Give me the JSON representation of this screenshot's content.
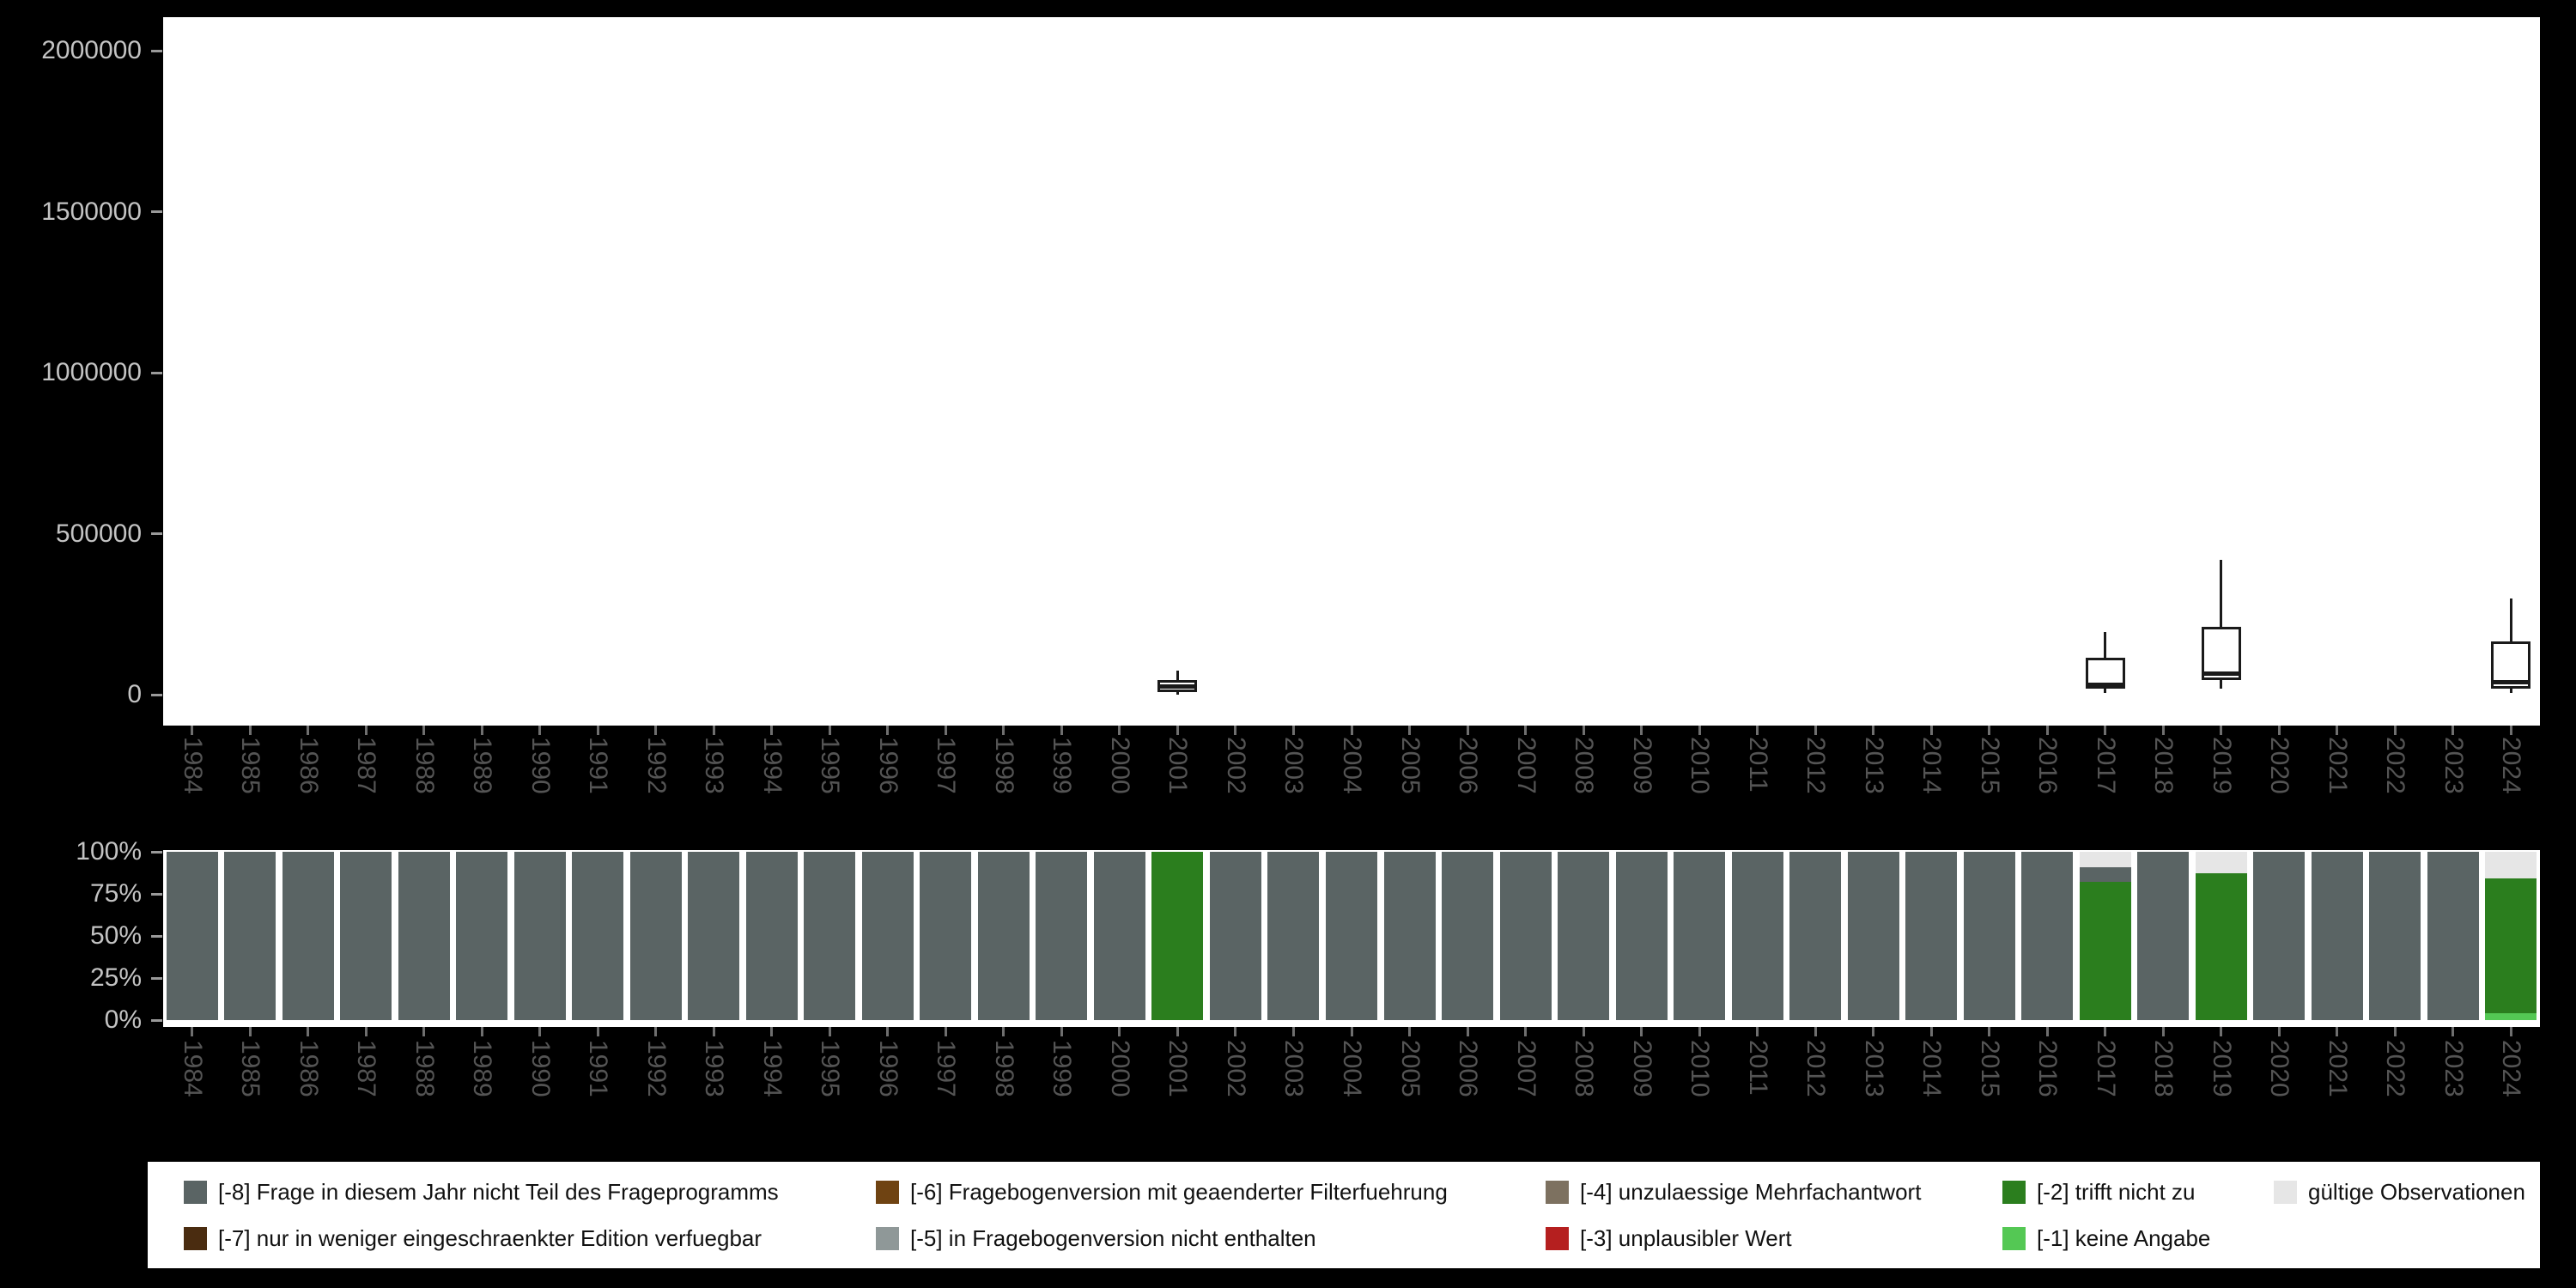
{
  "legend": {
    "items": [
      {
        "key": "-8",
        "label": "[-8] Frage in diesem Jahr nicht Teil des Frageprogramms",
        "color": "#5a6464"
      },
      {
        "key": "-7",
        "label": "[-7] nur in weniger eingeschraenkter Edition verfuegbar",
        "color": "#4a2c10"
      },
      {
        "key": "-6",
        "label": "[-6] Fragebogenversion mit geaenderter Filterfuehrung",
        "color": "#6f4312"
      },
      {
        "key": "-5",
        "label": "[-5] in Fragebogenversion nicht enthalten",
        "color": "#8f9898"
      },
      {
        "key": "-4",
        "label": "[-4] unzulaessige Mehrfachantwort",
        "color": "#7d7160"
      },
      {
        "key": "-3",
        "label": "[-3] unplausibler Wert",
        "color": "#b51f1f"
      },
      {
        "key": "-2",
        "label": "[-2] trifft nicht zu",
        "color": "#2b7e1e"
      },
      {
        "key": "-1",
        "label": "[-1] keine Angabe",
        "color": "#54c854"
      },
      {
        "key": "valid",
        "label": "gültige Observationen",
        "color": "#e6e6e6"
      }
    ]
  },
  "chart_data": [
    {
      "type": "boxplot",
      "title": "",
      "xlabel": "",
      "ylabel": "",
      "ylim": [
        0,
        2000000
      ],
      "y_ticks": [
        {
          "value": 0,
          "label": "0"
        },
        {
          "value": 500000,
          "label": "500000"
        },
        {
          "value": 1000000,
          "label": "1000000"
        },
        {
          "value": 1500000,
          "label": "1500000"
        },
        {
          "value": 2000000,
          "label": "2000000"
        }
      ],
      "x_categories": [
        "1984",
        "1985",
        "1986",
        "1987",
        "1988",
        "1989",
        "1990",
        "1991",
        "1992",
        "1993",
        "1994",
        "1995",
        "1996",
        "1997",
        "1998",
        "1999",
        "2000",
        "2001",
        "2002",
        "2003",
        "2004",
        "2005",
        "2006",
        "2007",
        "2008",
        "2009",
        "2010",
        "2011",
        "2012",
        "2013",
        "2014",
        "2015",
        "2016",
        "2017",
        "2018",
        "2019",
        "2020",
        "2021",
        "2022",
        "2023",
        "2024"
      ],
      "boxes": {
        "2001": {
          "low": 0,
          "q1": 8000,
          "median": 25000,
          "q3": 45000,
          "high": 75000
        },
        "2017": {
          "low": 5000,
          "q1": 20000,
          "median": 32000,
          "q3": 115000,
          "high": 195000
        },
        "2019": {
          "low": 20000,
          "q1": 45000,
          "median": 65000,
          "q3": 210000,
          "high": 420000
        },
        "2024": {
          "low": 5000,
          "q1": 20000,
          "median": 40000,
          "q3": 165000,
          "high": 300000
        }
      }
    },
    {
      "type": "bar",
      "stacked": true,
      "unit": "percent",
      "title": "",
      "xlabel": "",
      "ylabel": "",
      "ylim": [
        0,
        100
      ],
      "y_ticks": [
        {
          "value": 0,
          "label": "0%"
        },
        {
          "value": 25,
          "label": "25%"
        },
        {
          "value": 50,
          "label": "50%"
        },
        {
          "value": 75,
          "label": "75%"
        },
        {
          "value": 100,
          "label": "100%"
        }
      ],
      "categories": [
        "1984",
        "1985",
        "1986",
        "1987",
        "1988",
        "1989",
        "1990",
        "1991",
        "1992",
        "1993",
        "1994",
        "1995",
        "1996",
        "1997",
        "1998",
        "1999",
        "2000",
        "2001",
        "2002",
        "2003",
        "2004",
        "2005",
        "2006",
        "2007",
        "2008",
        "2009",
        "2010",
        "2011",
        "2012",
        "2013",
        "2014",
        "2015",
        "2016",
        "2017",
        "2018",
        "2019",
        "2020",
        "2021",
        "2022",
        "2023",
        "2024"
      ],
      "default_segments": [
        [
          "-8",
          100
        ]
      ],
      "segments_by_year": {
        "2001": [
          [
            "-2",
            100
          ]
        ],
        "2017": [
          [
            "-2",
            82
          ],
          [
            "-8",
            9
          ],
          [
            "valid",
            9
          ]
        ],
        "2019": [
          [
            "-2",
            87
          ],
          [
            "valid",
            13
          ]
        ],
        "2024": [
          [
            "-1",
            4
          ],
          [
            "-2",
            80
          ],
          [
            "valid",
            16
          ]
        ]
      }
    }
  ]
}
